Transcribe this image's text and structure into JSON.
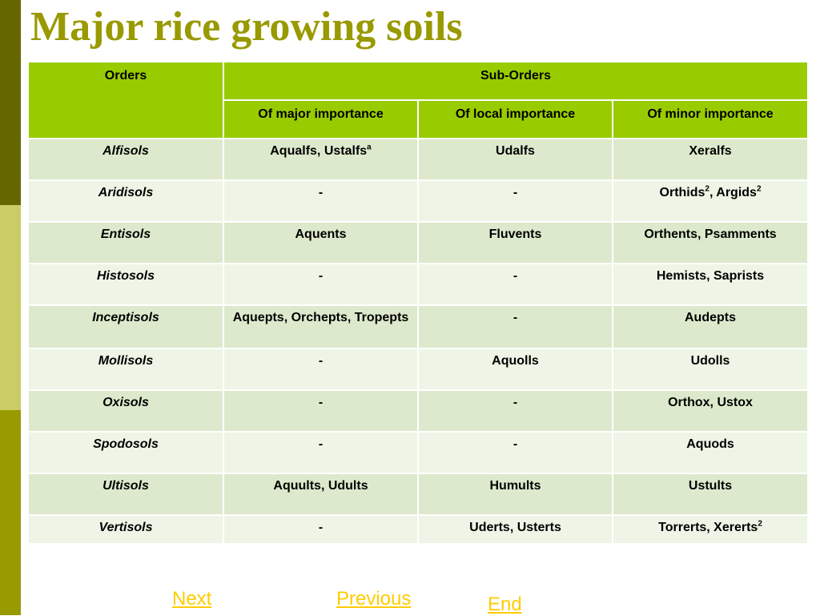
{
  "title": "Major rice growing soils",
  "table": {
    "orders_header": "Orders",
    "suborders_header": "Sub-Orders",
    "columns": [
      "Of major importance",
      "Of local importance",
      "Of minor importance"
    ],
    "rows": [
      {
        "order": "Alfisols",
        "major": "Aqualfs, Ustalfs",
        "major_sup": "a",
        "local": "Udalfs",
        "minor": "Xeralfs"
      },
      {
        "order": "Aridisols",
        "major": "-",
        "local": "-",
        "minor_parts": [
          "Orthids",
          "2",
          ", Argids",
          "2"
        ]
      },
      {
        "order": "Entisols",
        "major": "Aquents",
        "local": "Fluvents",
        "minor": "Orthents, Psamments"
      },
      {
        "order": "Histosols",
        "major": "-",
        "local": "-",
        "minor": "Hemists, Saprists"
      },
      {
        "order": "Inceptisols",
        "major": "Aquepts, Orchepts, Tropepts",
        "local": "-",
        "minor": "Audepts"
      },
      {
        "order": "Mollisols",
        "major": "-",
        "local": "Aquolls",
        "minor": "Udolls"
      },
      {
        "order": "Oxisols",
        "major": "-",
        "local": "-",
        "minor": "Orthox, Ustox"
      },
      {
        "order": "Spodosols",
        "major": "-",
        "local": "-",
        "minor": "Aquods"
      },
      {
        "order": "Ultisols",
        "major": "Aquults, Udults",
        "local": "Humults",
        "minor": "Ustults"
      },
      {
        "order": "Vertisols",
        "major": "-",
        "local": "Uderts, Usterts",
        "minor": "Torrerts, Xererts",
        "minor_sup": "2"
      }
    ]
  },
  "nav": {
    "next": "Next",
    "previous": "Previous",
    "end": "End"
  },
  "colors": {
    "accent": "#99cc00",
    "title": "#999900",
    "link": "#ffcc00"
  }
}
